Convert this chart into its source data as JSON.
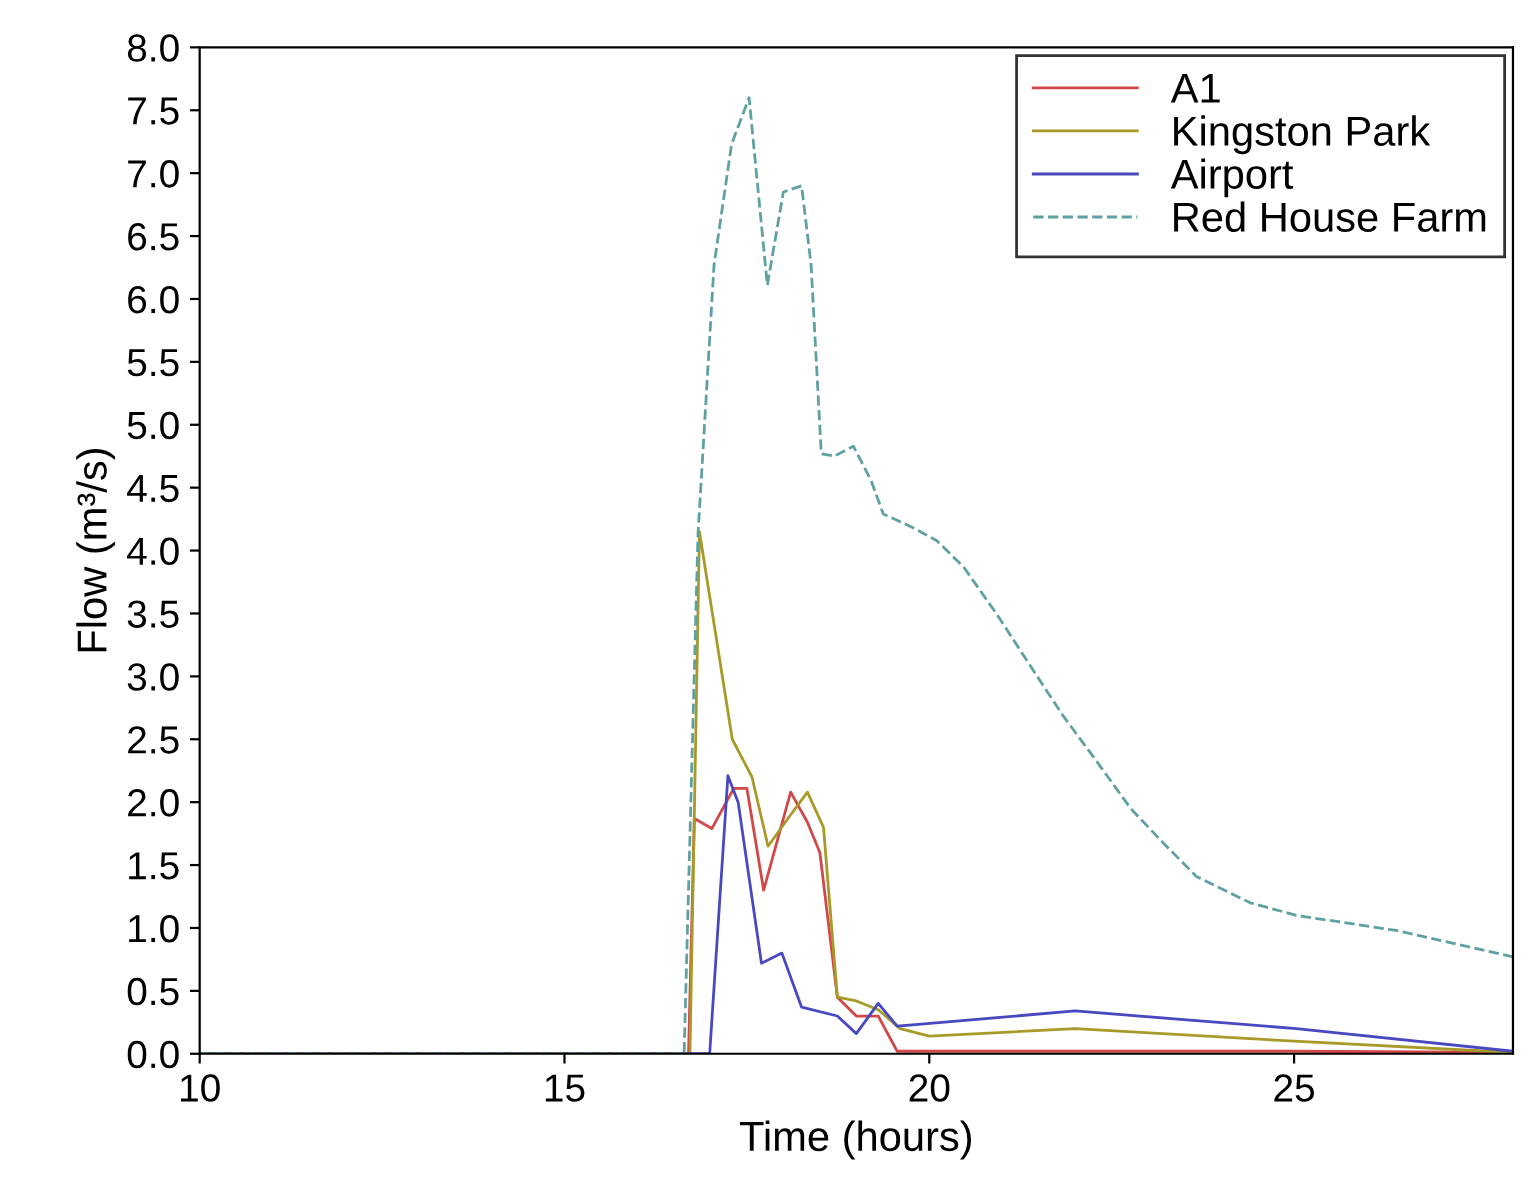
{
  "chart_data": {
    "type": "line",
    "xlabel": "Time (hours)",
    "ylabel": "Flow (m³/s)",
    "xlim": [
      10,
      28
    ],
    "xticks": [
      10,
      15,
      20,
      25
    ],
    "ylim": [
      0,
      8
    ],
    "yticks": [
      {
        "value": 0,
        "label": "0.0"
      },
      {
        "value": 0.5,
        "label": "0.5"
      },
      {
        "value": 1,
        "label": "1.0"
      },
      {
        "value": 1.5,
        "label": "1.5"
      },
      {
        "value": 2,
        "label": "2.0"
      },
      {
        "value": 2.5,
        "label": "2.5"
      },
      {
        "value": 3,
        "label": "3.0"
      },
      {
        "value": 3.5,
        "label": "3.5"
      },
      {
        "value": 4,
        "label": "4.0"
      },
      {
        "value": 4.5,
        "label": "4.5"
      },
      {
        "value": 5,
        "label": "5.0"
      },
      {
        "value": 5.5,
        "label": "5.5"
      },
      {
        "value": 6,
        "label": "6.0"
      },
      {
        "value": 6.5,
        "label": "6.5"
      },
      {
        "value": 7,
        "label": "7.0"
      },
      {
        "value": 7.5,
        "label": "7.5"
      },
      {
        "value": 8,
        "label": "8.0"
      }
    ],
    "grid": false,
    "legend": "top right",
    "marker": "none",
    "series": [
      {
        "name": "A1",
        "color": "#d04848",
        "line_style": "solid",
        "x": [
          10,
          16.7,
          16.78,
          17.02,
          17.32,
          17.5,
          17.73,
          18.1,
          18.33,
          18.5,
          18.74,
          19.0,
          19.3,
          19.56,
          20,
          22,
          25,
          28
        ],
        "values": [
          0,
          0,
          1.87,
          1.79,
          2.11,
          2.11,
          1.3,
          2.08,
          1.84,
          1.6,
          0.45,
          0.3,
          0.3,
          0.02,
          0.02,
          0.02,
          0.02,
          0.01
        ]
      },
      {
        "name": "Kingston Park",
        "color": "#a89a28",
        "line_style": "solid",
        "x": [
          10,
          16.72,
          16.85,
          17.3,
          17.57,
          17.79,
          18.1,
          18.33,
          18.55,
          18.74,
          19.0,
          19.3,
          19.6,
          20,
          22,
          25,
          28
        ],
        "values": [
          0,
          0,
          4.15,
          2.5,
          2.2,
          1.65,
          1.9,
          2.08,
          1.8,
          0.45,
          0.42,
          0.35,
          0.2,
          0.14,
          0.2,
          0.1,
          0.01
        ]
      },
      {
        "name": "Airport",
        "color": "#4848c0",
        "line_style": "solid",
        "x": [
          10,
          16.99,
          17.24,
          17.38,
          17.7,
          17.98,
          18.25,
          18.74,
          19.0,
          19.3,
          19.56,
          19.97,
          22.0,
          25.03,
          28
        ],
        "values": [
          0,
          0,
          2.21,
          2.0,
          0.72,
          0.8,
          0.37,
          0.3,
          0.16,
          0.4,
          0.22,
          0.24,
          0.34,
          0.2,
          0.02
        ]
      },
      {
        "name": "Red House Farm",
        "color": "#5fa0a0",
        "line_style": "dashed",
        "x": [
          10,
          16.64,
          16.83,
          17.05,
          17.29,
          17.53,
          17.78,
          18.0,
          18.25,
          18.38,
          18.52,
          18.7,
          18.96,
          19.2,
          19.37,
          19.75,
          20.1,
          20.47,
          20.93,
          21.4,
          21.83,
          22.3,
          22.76,
          23.2,
          23.66,
          24.4,
          25.03,
          26.4,
          28
        ],
        "values": [
          0,
          0,
          4.13,
          6.27,
          7.23,
          7.6,
          6.11,
          6.85,
          6.9,
          6.27,
          4.77,
          4.75,
          4.83,
          4.56,
          4.29,
          4.19,
          4.08,
          3.87,
          3.49,
          3.07,
          2.69,
          2.32,
          1.95,
          1.68,
          1.41,
          1.2,
          1.1,
          0.98,
          0.77
        ]
      }
    ]
  }
}
